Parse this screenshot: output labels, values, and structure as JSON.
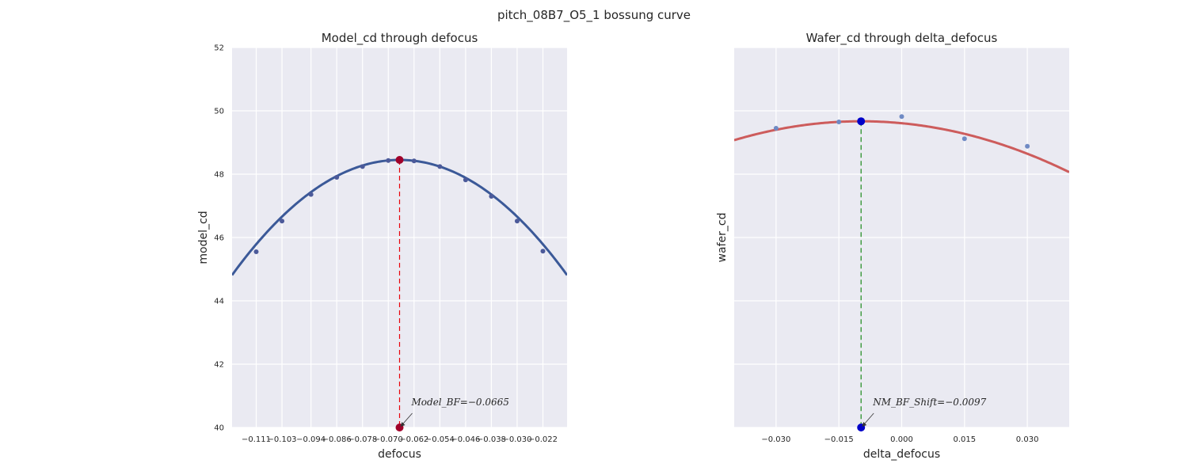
{
  "figure": {
    "suptitle": "pitch_08B7_O5_1 bossung curve"
  },
  "chart_data": [
    {
      "type": "scatter",
      "title": "Model_cd through defocus",
      "xlabel": "defocus",
      "ylabel": "model_cd",
      "xlim": [
        -0.1185,
        -0.0145
      ],
      "ylim": [
        40,
        52
      ],
      "xticks": [
        -0.111,
        -0.103,
        -0.094,
        -0.086,
        -0.078,
        -0.07,
        -0.062,
        -0.054,
        -0.046,
        -0.038,
        -0.03,
        -0.022
      ],
      "xticklabels": [
        "−0.111",
        "−0.103",
        "−0.094",
        "−0.086",
        "−0.078",
        "−0.070",
        "−0.062",
        "−0.054",
        "−0.046",
        "−0.038",
        "−0.030",
        "−0.022"
      ],
      "yticks": [
        40,
        42,
        44,
        46,
        48,
        50,
        52
      ],
      "yticklabels": [
        "40",
        "42",
        "44",
        "46",
        "48",
        "50",
        "52"
      ],
      "grid": true,
      "fit": {
        "kind": "quadratic",
        "vertex_x": -0.0665,
        "vertex_y": 48.45,
        "a": -1345,
        "color": "#3b5998"
      },
      "points": {
        "x": [
          -0.111,
          -0.103,
          -0.094,
          -0.086,
          -0.078,
          -0.07,
          -0.062,
          -0.054,
          -0.046,
          -0.038,
          -0.03,
          -0.022
        ],
        "y": [
          45.55,
          46.52,
          47.36,
          47.9,
          48.24,
          48.43,
          48.42,
          48.24,
          47.82,
          47.3,
          46.52,
          45.57
        ],
        "color": "#4c5a9a"
      },
      "best_focus": {
        "x": -0.0665,
        "y": 48.45,
        "marker_color": "#a0002a",
        "line_color": "#e8000b"
      },
      "annotation": {
        "text": "Model_BF=−0.0665",
        "x": -0.0665,
        "y": 40
      }
    },
    {
      "type": "scatter",
      "title": "Wafer_cd through delta_defocus",
      "xlabel": "delta_defocus",
      "ylabel": "wafer_cd",
      "xlim": [
        -0.04,
        0.04
      ],
      "ylim": [
        40,
        52
      ],
      "xticks": [
        -0.03,
        -0.015,
        0.0,
        0.015,
        0.03
      ],
      "xticklabels": [
        "−0.030",
        "−0.015",
        "0.000",
        "0.015",
        "0.030"
      ],
      "yticks": [
        40,
        42,
        44,
        46,
        48,
        50,
        52
      ],
      "grid": true,
      "fit": {
        "kind": "quadratic",
        "vertex_x": -0.0097,
        "vertex_y": 49.67,
        "a": -650,
        "color": "#cd5c5c"
      },
      "points": {
        "x": [
          -0.03,
          -0.015,
          0.0,
          0.015,
          0.03
        ],
        "y": [
          49.45,
          49.65,
          49.82,
          49.12,
          48.88
        ],
        "color": "#6f8ac4"
      },
      "best_focus": {
        "x": -0.0097,
        "y": 49.67,
        "marker_color": "#0000c8",
        "line_color": "#1a8a1a"
      },
      "annotation": {
        "text": "NM_BF_Shift=−0.0097",
        "x": -0.0097,
        "y": 40
      }
    }
  ]
}
